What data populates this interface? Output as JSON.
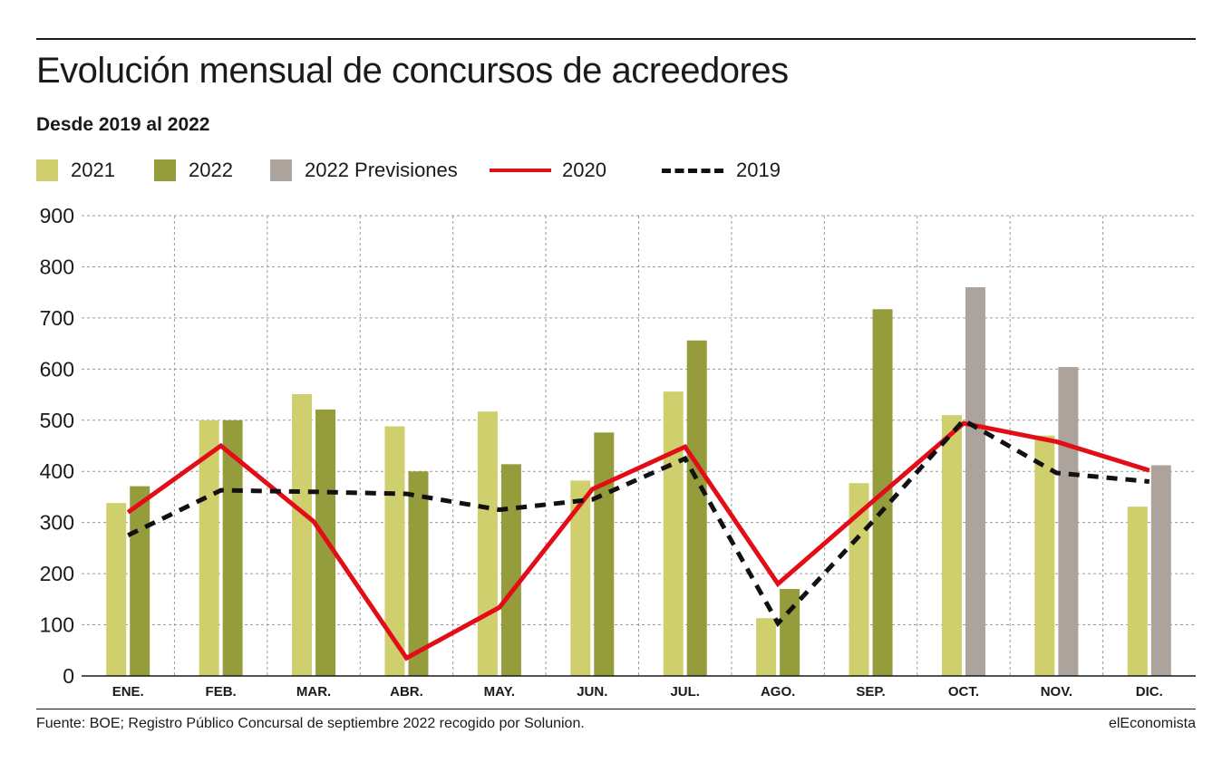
{
  "header": {
    "title": "Evolución mensual de concursos de acreedores",
    "subtitle": "Desde 2019 al 2022"
  },
  "legend": [
    {
      "label": "2021",
      "color": "#cfcf6e",
      "style": "bar"
    },
    {
      "label": "2022",
      "color": "#949c3c",
      "style": "bar"
    },
    {
      "label": "2022 Previsiones",
      "color": "#aca49c",
      "style": "bar"
    },
    {
      "label": "2020",
      "color": "#e30d18",
      "style": "line"
    },
    {
      "label": "2019",
      "color": "#111111",
      "style": "dashed"
    }
  ],
  "chart_data": {
    "type": "bar",
    "categories": [
      "ENE.",
      "FEB.",
      "MAR.",
      "ABR.",
      "MAY.",
      "JUN.",
      "JUL.",
      "AGO.",
      "SEP.",
      "OCT.",
      "NOV.",
      "DIC."
    ],
    "series": [
      {
        "name": "2021",
        "kind": "bar",
        "color": "#cfcf6e",
        "values": [
          338,
          500,
          551,
          488,
          517,
          382,
          556,
          113,
          377,
          510,
          470,
          331
        ]
      },
      {
        "name": "2022",
        "kind": "bar",
        "color": "#949c3c",
        "values": [
          371,
          500,
          521,
          400,
          414,
          476,
          656,
          170,
          717,
          null,
          null,
          null
        ]
      },
      {
        "name": "2022 Previsiones",
        "kind": "bar",
        "color": "#aca49c",
        "values": [
          null,
          null,
          null,
          null,
          null,
          null,
          null,
          null,
          null,
          760,
          604,
          412
        ]
      },
      {
        "name": "2020",
        "kind": "line",
        "color": "#e30d18",
        "values": [
          320,
          450,
          302,
          35,
          134,
          365,
          448,
          180,
          338,
          494,
          458,
          402
        ]
      },
      {
        "name": "2019",
        "kind": "dashed-line",
        "color": "#111111",
        "values": [
          275,
          363,
          360,
          356,
          325,
          345,
          425,
          103,
          298,
          500,
          397,
          380
        ]
      }
    ],
    "yticks": [
      0,
      100,
      200,
      300,
      400,
      500,
      600,
      700,
      800,
      900
    ],
    "ylim": [
      0,
      900
    ],
    "grid": true,
    "legend_position": "top-left"
  },
  "footer": {
    "source": "Fuente: BOE; Registro Público Concursal de septiembre 2022 recogido por Solunion.",
    "brand": "elEconomista"
  }
}
